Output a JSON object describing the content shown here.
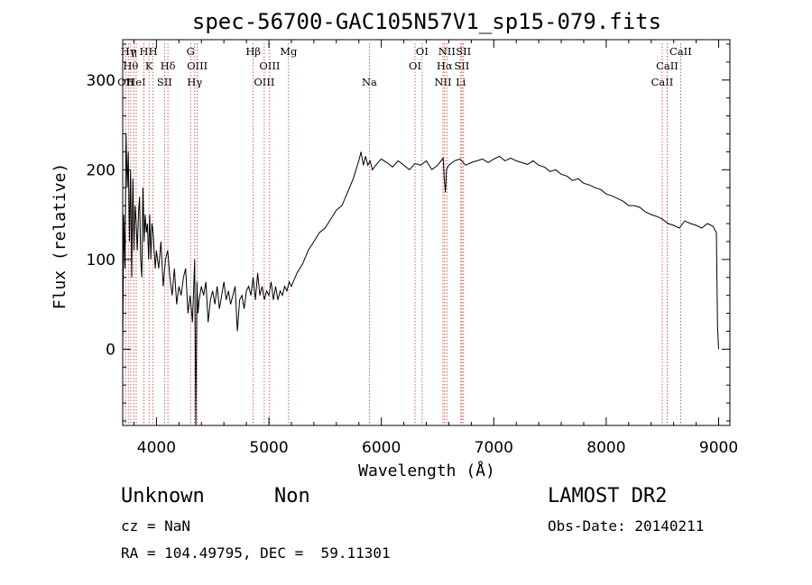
{
  "chart_data": {
    "type": "line",
    "title": "spec-56700-GAC105N57V1_sp15-079.fits",
    "xlabel": "Wavelength (Å)",
    "ylabel": "Flux (relative)",
    "xlim": [
      3700,
      9100
    ],
    "ylim": [
      -85,
      345
    ],
    "xticks": [
      4000,
      5000,
      6000,
      7000,
      8000,
      9000
    ],
    "yticks": [
      0,
      100,
      200,
      300
    ],
    "series": [
      {
        "x": [
          3700,
          3710,
          3720,
          3730,
          3740,
          3750,
          3760,
          3770,
          3780,
          3790,
          3800,
          3810,
          3820,
          3830,
          3840,
          3850,
          3860,
          3870,
          3880,
          3890,
          3900,
          3910,
          3920,
          3930,
          3940,
          3950,
          3960,
          3970,
          3980,
          3990,
          4000,
          4020,
          4040,
          4060,
          4080,
          4100,
          4120,
          4140,
          4160,
          4180,
          4200,
          4220,
          4240,
          4260,
          4280,
          4300,
          4320,
          4340,
          4350,
          4360,
          4370,
          4380,
          4400,
          4420,
          4440,
          4460,
          4480,
          4500,
          4520,
          4540,
          4560,
          4580,
          4600,
          4620,
          4640,
          4660,
          4680,
          4700,
          4720,
          4740,
          4760,
          4780,
          4800,
          4820,
          4840,
          4860,
          4880,
          4900,
          4920,
          4940,
          4960,
          4980,
          5000,
          5020,
          5040,
          5060,
          5080,
          5100,
          5120,
          5140,
          5160,
          5180,
          5200,
          5250,
          5300,
          5350,
          5400,
          5450,
          5500,
          5550,
          5600,
          5650,
          5700,
          5750,
          5800,
          5820,
          5840,
          5860,
          5880,
          5900,
          5920,
          5950,
          6000,
          6050,
          6100,
          6150,
          6200,
          6250,
          6300,
          6350,
          6400,
          6450,
          6500,
          6550,
          6560,
          6570,
          6580,
          6600,
          6650,
          6700,
          6750,
          6800,
          6850,
          6900,
          6950,
          7000,
          7050,
          7100,
          7150,
          7200,
          7250,
          7300,
          7350,
          7400,
          7450,
          7500,
          7550,
          7600,
          7650,
          7700,
          7750,
          7800,
          7850,
          7900,
          7950,
          8000,
          8050,
          8100,
          8150,
          8200,
          8250,
          8300,
          8350,
          8400,
          8450,
          8500,
          8550,
          8600,
          8650,
          8700,
          8750,
          8800,
          8850,
          8900,
          8950,
          8980,
          8990,
          9000
        ],
        "y": [
          0,
          150,
          90,
          240,
          180,
          220,
          120,
          200,
          80,
          190,
          110,
          160,
          140,
          110,
          150,
          170,
          100,
          80,
          180,
          120,
          150,
          130,
          140,
          100,
          150,
          100,
          140,
          130,
          110,
          90,
          110,
          90,
          120,
          70,
          100,
          110,
          80,
          60,
          90,
          50,
          70,
          60,
          80,
          90,
          40,
          60,
          30,
          100,
          -85,
          75,
          40,
          55,
          70,
          60,
          75,
          30,
          55,
          65,
          50,
          70,
          45,
          60,
          75,
          55,
          65,
          50,
          60,
          70,
          20,
          55,
          60,
          45,
          65,
          70,
          60,
          80,
          55,
          85,
          60,
          70,
          55,
          65,
          60,
          75,
          55,
          70,
          55,
          65,
          60,
          70,
          65,
          75,
          70,
          85,
          95,
          110,
          120,
          130,
          135,
          145,
          155,
          160,
          175,
          190,
          210,
          220,
          205,
          215,
          205,
          210,
          200,
          205,
          212,
          208,
          203,
          210,
          205,
          200,
          207,
          205,
          210,
          200,
          205,
          213,
          190,
          175,
          200,
          205,
          210,
          212,
          205,
          208,
          210,
          212,
          208,
          212,
          215,
          210,
          213,
          210,
          208,
          206,
          210,
          205,
          203,
          198,
          200,
          195,
          193,
          188,
          190,
          185,
          183,
          180,
          178,
          173,
          171,
          168,
          165,
          160,
          160,
          158,
          153,
          150,
          148,
          145,
          140,
          138,
          135,
          143,
          140,
          138,
          135,
          140,
          137,
          130,
          25,
          0
        ]
      }
    ],
    "lines": [
      {
        "w": 3727,
        "label": "OII",
        "row": 3
      },
      {
        "w": 3750,
        "label": "Hγ",
        "row": 1
      },
      {
        "w": 3771,
        "label": "Hθ",
        "row": 2
      },
      {
        "w": 3798,
        "label": "η",
        "row": 1
      },
      {
        "w": 3820,
        "label": "HeI",
        "row": 3
      },
      {
        "w": 3889,
        "label": "H",
        "row": 1
      },
      {
        "w": 3934,
        "label": "K",
        "row": 2
      },
      {
        "w": 3970,
        "label": "H",
        "row": 1
      },
      {
        "w": 4072,
        "label": "SII",
        "row": 3
      },
      {
        "w": 4102,
        "label": "Hδ",
        "row": 2
      },
      {
        "w": 4304,
        "label": "G",
        "row": 1
      },
      {
        "w": 4340,
        "label": "Hγ",
        "row": 3
      },
      {
        "w": 4363,
        "label": "OIII",
        "row": 2
      },
      {
        "w": 4861,
        "label": "Hβ",
        "row": 1
      },
      {
        "w": 4959,
        "label": "OIII",
        "row": 3
      },
      {
        "w": 5007,
        "label": "OIII",
        "row": 2
      },
      {
        "w": 5175,
        "label": "Mg",
        "row": 1
      },
      {
        "w": 5894,
        "label": "Na",
        "row": 3
      },
      {
        "w": 6300,
        "label": "OI",
        "row": 2
      },
      {
        "w": 6363,
        "label": "OI",
        "row": 1
      },
      {
        "w": 6548,
        "label": "NII",
        "row": 3
      },
      {
        "w": 6563,
        "label": "Hα",
        "row": 2
      },
      {
        "w": 6583,
        "label": "NII",
        "row": 1
      },
      {
        "w": 6707,
        "label": "Li",
        "row": 3
      },
      {
        "w": 6716,
        "label": "SII",
        "row": 2
      },
      {
        "w": 6731,
        "label": "SII",
        "row": 1
      },
      {
        "w": 8498,
        "label": "CaII",
        "row": 3
      },
      {
        "w": 8542,
        "label": "CaII",
        "row": 2
      },
      {
        "w": 8662,
        "label": "CaII",
        "row": 1
      }
    ]
  },
  "info": {
    "class_label": "Unknown",
    "subclass_label": "Non",
    "survey": "LAMOST DR2",
    "cz": "cz = NaN",
    "obs_date": "Obs-Date: 20140211",
    "coords": "RA = 104.49795, DEC =  59.11301"
  },
  "colors": {
    "line_marker": "#c0392b",
    "spectrum": "#000000"
  }
}
